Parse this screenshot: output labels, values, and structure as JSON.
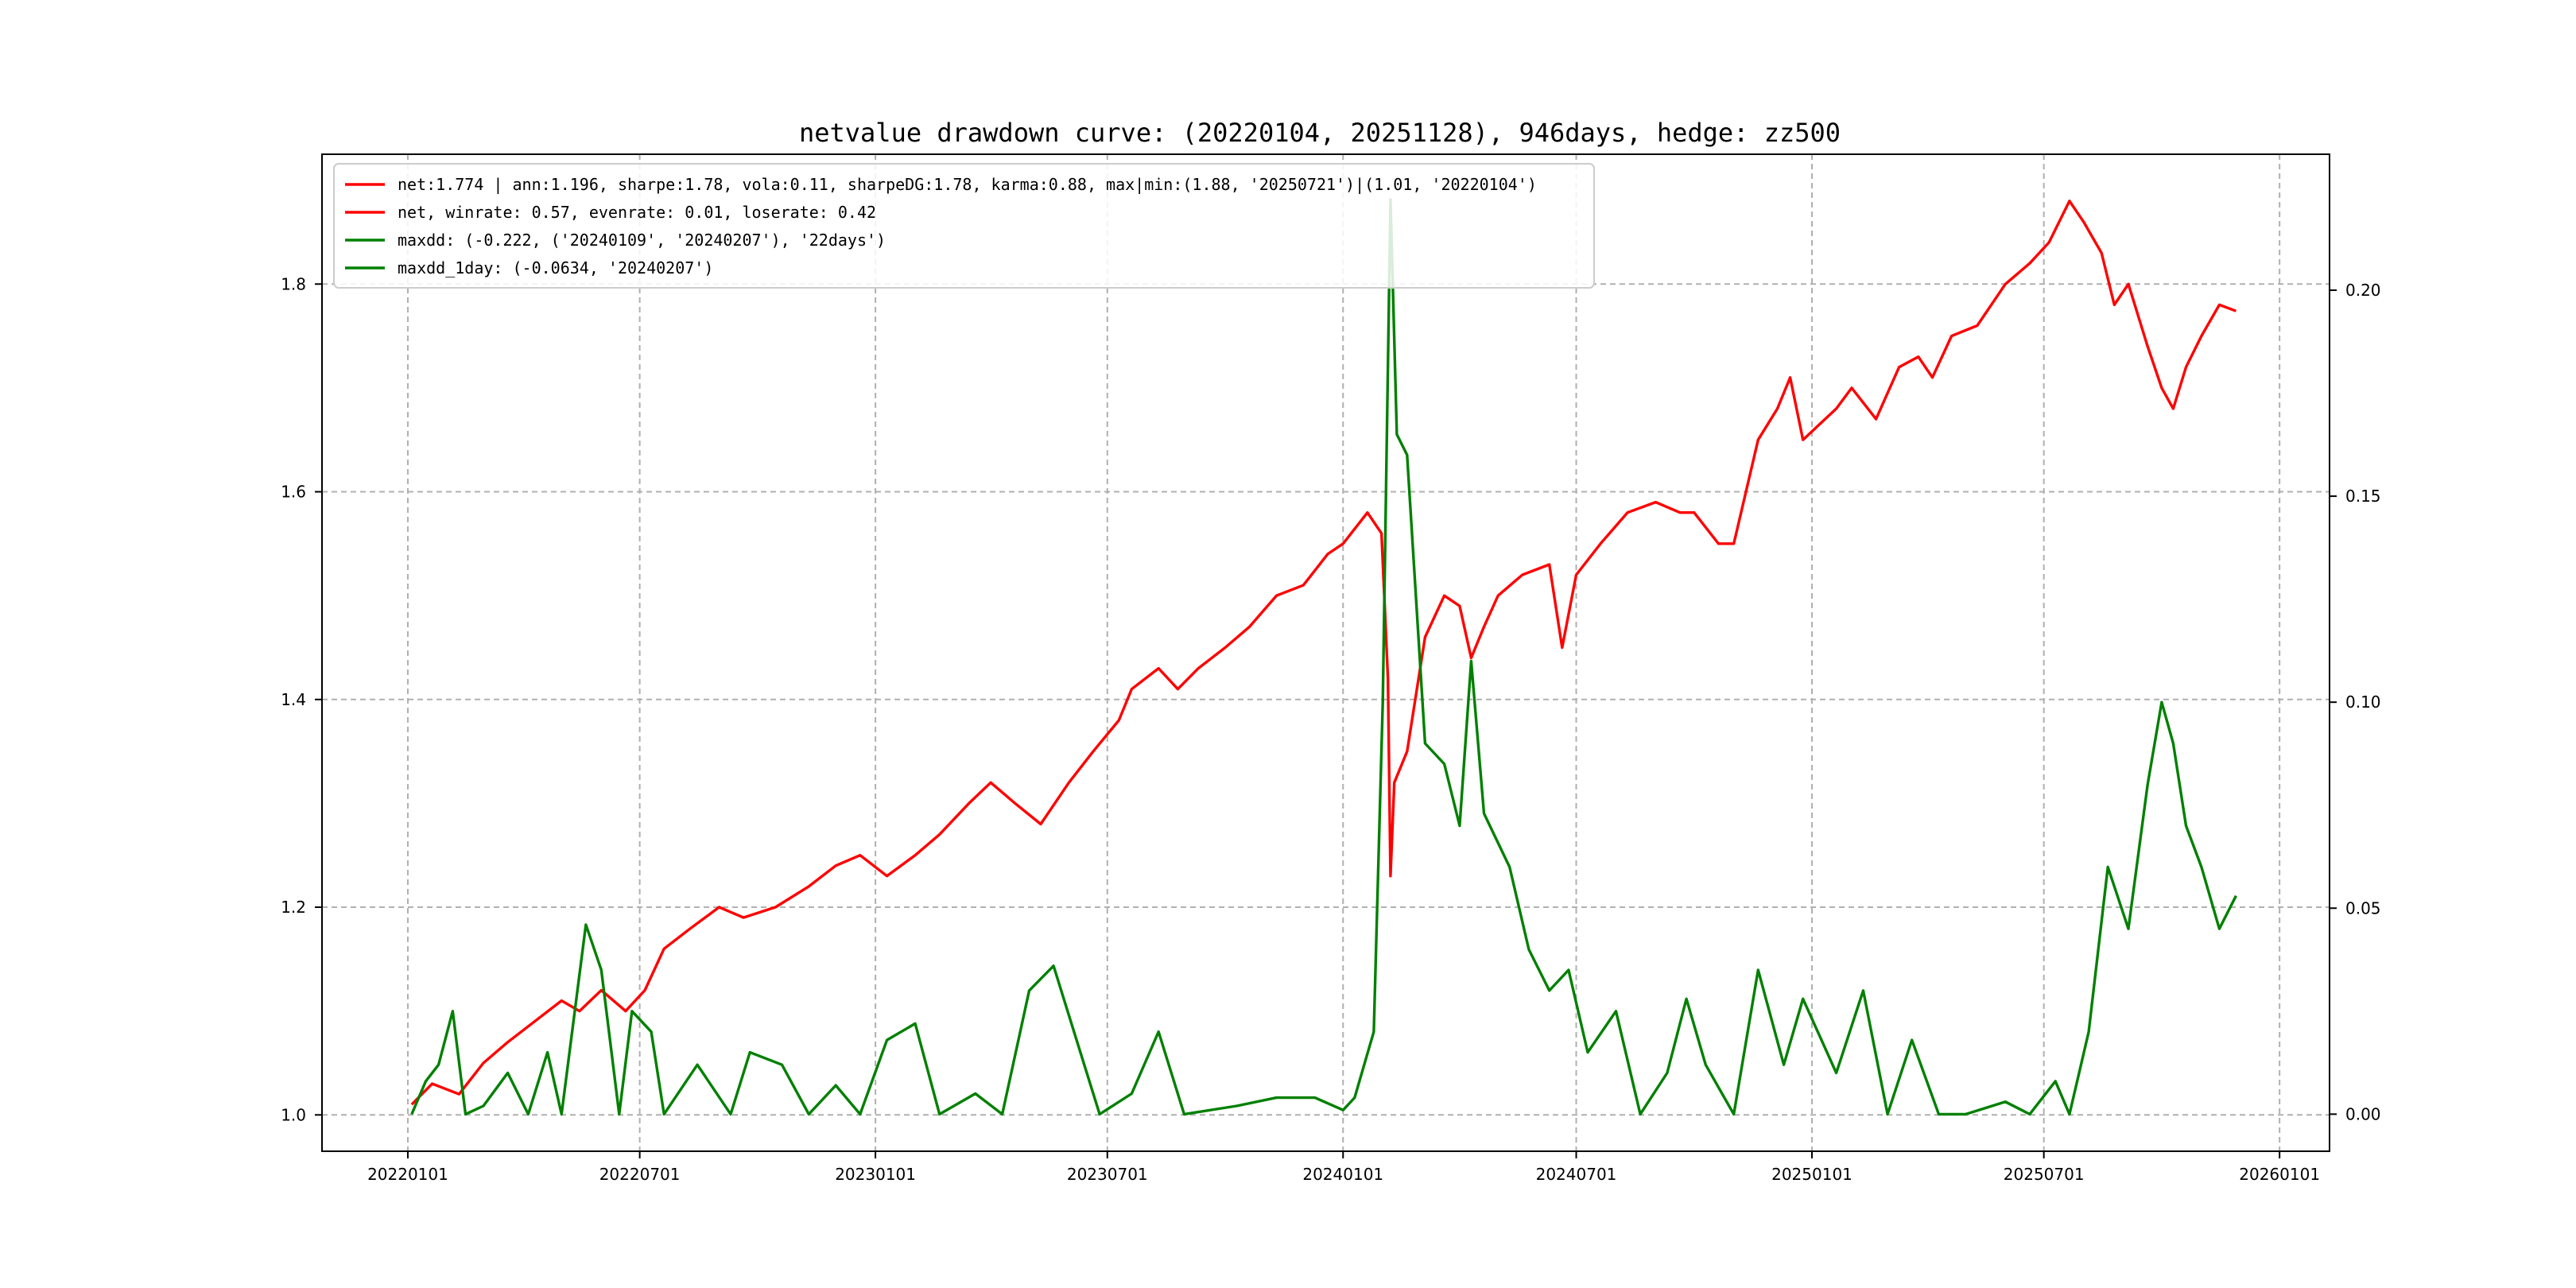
{
  "chart_data": {
    "type": "line",
    "title": "netvalue drawdown curve: (20220104, 20251128), 946days, hedge: zz500",
    "x_ticks": [
      "20220101",
      "20220701",
      "20230101",
      "20230701",
      "20240101",
      "20240701",
      "20250101",
      "20250701",
      "20260101"
    ],
    "x_range": [
      "2021-10-26",
      "2026-02-09"
    ],
    "y_left": {
      "ticks": [
        "1.0",
        "1.2",
        "1.4",
        "1.6",
        "1.8"
      ],
      "range": [
        0.965,
        1.925
      ]
    },
    "y_right": {
      "ticks": [
        "0.00",
        "0.05",
        "0.10",
        "0.15",
        "0.20"
      ],
      "range": [
        -0.009,
        0.233
      ]
    },
    "grid": true,
    "legend_position": "top-left",
    "legend": [
      {
        "label": "net:1.774 | ann:1.196, sharpe:1.78, vola:0.11, sharpeDG:1.78, karma:0.88, max|min:(1.88, '20250721')|(1.01, '20220104')",
        "color": "#ff0000"
      },
      {
        "label": "net, winrate: 0.57, evenrate: 0.01, loserate: 0.42",
        "color": "#ff0000"
      },
      {
        "label": "maxdd: (-0.222, ('20240109', '20240207'), '22days')",
        "color": "#008000"
      },
      {
        "label": "maxdd_1day: (-0.0634, '20240207')",
        "color": "#008000"
      }
    ],
    "series": [
      {
        "axis": "left",
        "color": "#ff0000",
        "points": [
          [
            "2022-01-04",
            1.01
          ],
          [
            "2022-01-20",
            1.03
          ],
          [
            "2022-02-10",
            1.02
          ],
          [
            "2022-03-01",
            1.05
          ],
          [
            "2022-03-20",
            1.07
          ],
          [
            "2022-04-10",
            1.09
          ],
          [
            "2022-05-01",
            1.11
          ],
          [
            "2022-05-15",
            1.1
          ],
          [
            "2022-06-01",
            1.12
          ],
          [
            "2022-06-20",
            1.1
          ],
          [
            "2022-07-05",
            1.12
          ],
          [
            "2022-07-20",
            1.16
          ],
          [
            "2022-08-10",
            1.18
          ],
          [
            "2022-09-01",
            1.2
          ],
          [
            "2022-09-20",
            1.19
          ],
          [
            "2022-10-15",
            1.2
          ],
          [
            "2022-11-10",
            1.22
          ],
          [
            "2022-12-01",
            1.24
          ],
          [
            "2022-12-20",
            1.25
          ],
          [
            "2023-01-10",
            1.23
          ],
          [
            "2023-02-01",
            1.25
          ],
          [
            "2023-02-20",
            1.27
          ],
          [
            "2023-03-15",
            1.3
          ],
          [
            "2023-04-01",
            1.32
          ],
          [
            "2023-04-20",
            1.3
          ],
          [
            "2023-05-10",
            1.28
          ],
          [
            "2023-06-01",
            1.32
          ],
          [
            "2023-06-20",
            1.35
          ],
          [
            "2023-07-10",
            1.38
          ],
          [
            "2023-07-20",
            1.41
          ],
          [
            "2023-08-10",
            1.43
          ],
          [
            "2023-08-25",
            1.41
          ],
          [
            "2023-09-10",
            1.43
          ],
          [
            "2023-10-01",
            1.45
          ],
          [
            "2023-10-20",
            1.47
          ],
          [
            "2023-11-10",
            1.5
          ],
          [
            "2023-12-01",
            1.51
          ],
          [
            "2023-12-20",
            1.54
          ],
          [
            "2024-01-01",
            1.55
          ],
          [
            "2024-01-20",
            1.58
          ],
          [
            "2024-01-31",
            1.56
          ],
          [
            "2024-02-05",
            1.42
          ],
          [
            "2024-02-07",
            1.23
          ],
          [
            "2024-02-10",
            1.32
          ],
          [
            "2024-02-20",
            1.35
          ],
          [
            "2024-03-05",
            1.46
          ],
          [
            "2024-03-20",
            1.5
          ],
          [
            "2024-04-01",
            1.49
          ],
          [
            "2024-04-10",
            1.44
          ],
          [
            "2024-04-20",
            1.47
          ],
          [
            "2024-05-01",
            1.5
          ],
          [
            "2024-05-20",
            1.52
          ],
          [
            "2024-06-10",
            1.53
          ],
          [
            "2024-06-20",
            1.45
          ],
          [
            "2024-07-01",
            1.52
          ],
          [
            "2024-07-20",
            1.55
          ],
          [
            "2024-08-10",
            1.58
          ],
          [
            "2024-09-01",
            1.59
          ],
          [
            "2024-09-20",
            1.58
          ],
          [
            "2024-10-01",
            1.58
          ],
          [
            "2024-10-20",
            1.55
          ],
          [
            "2024-11-01",
            1.55
          ],
          [
            "2024-11-20",
            1.65
          ],
          [
            "2024-12-05",
            1.68
          ],
          [
            "2024-12-15",
            1.71
          ],
          [
            "2024-12-25",
            1.65
          ],
          [
            "2025-01-20",
            1.68
          ],
          [
            "2025-02-01",
            1.7
          ],
          [
            "2025-02-20",
            1.67
          ],
          [
            "2025-03-10",
            1.72
          ],
          [
            "2025-03-25",
            1.73
          ],
          [
            "2025-04-05",
            1.71
          ],
          [
            "2025-04-20",
            1.75
          ],
          [
            "2025-05-10",
            1.76
          ],
          [
            "2025-06-01",
            1.8
          ],
          [
            "2025-06-20",
            1.82
          ],
          [
            "2025-07-05",
            1.84
          ],
          [
            "2025-07-21",
            1.88
          ],
          [
            "2025-08-01",
            1.86
          ],
          [
            "2025-08-15",
            1.83
          ],
          [
            "2025-08-25",
            1.78
          ],
          [
            "2025-09-05",
            1.8
          ],
          [
            "2025-09-20",
            1.74
          ],
          [
            "2025-10-01",
            1.7
          ],
          [
            "2025-10-10",
            1.68
          ],
          [
            "2025-10-20",
            1.72
          ],
          [
            "2025-11-01",
            1.75
          ],
          [
            "2025-11-15",
            1.78
          ],
          [
            "2025-11-28",
            1.774
          ]
        ]
      },
      {
        "axis": "right",
        "color": "#008000",
        "points": [
          [
            "2022-01-04",
            0.0
          ],
          [
            "2022-01-15",
            0.008
          ],
          [
            "2022-01-25",
            0.012
          ],
          [
            "2022-02-05",
            0.025
          ],
          [
            "2022-02-15",
            0.0
          ],
          [
            "2022-03-01",
            0.002
          ],
          [
            "2022-03-20",
            0.01
          ],
          [
            "2022-04-05",
            0.0
          ],
          [
            "2022-04-20",
            0.015
          ],
          [
            "2022-05-01",
            0.0
          ],
          [
            "2022-05-20",
            0.046
          ],
          [
            "2022-06-01",
            0.035
          ],
          [
            "2022-06-15",
            0.0
          ],
          [
            "2022-06-25",
            0.025
          ],
          [
            "2022-07-10",
            0.02
          ],
          [
            "2022-07-20",
            0.0
          ],
          [
            "2022-08-15",
            0.012
          ],
          [
            "2022-09-10",
            0.0
          ],
          [
            "2022-09-25",
            0.015
          ],
          [
            "2022-10-20",
            0.012
          ],
          [
            "2022-11-10",
            0.0
          ],
          [
            "2022-12-01",
            0.007
          ],
          [
            "2022-12-20",
            0.0
          ],
          [
            "2023-01-10",
            0.018
          ],
          [
            "2023-02-01",
            0.022
          ],
          [
            "2023-02-20",
            0.0
          ],
          [
            "2023-03-20",
            0.005
          ],
          [
            "2023-04-10",
            0.0
          ],
          [
            "2023-05-01",
            0.03
          ],
          [
            "2023-05-20",
            0.036
          ],
          [
            "2023-06-10",
            0.015
          ],
          [
            "2023-06-25",
            0.0
          ],
          [
            "2023-07-20",
            0.005
          ],
          [
            "2023-08-10",
            0.02
          ],
          [
            "2023-08-30",
            0.0
          ],
          [
            "2023-10-10",
            0.002
          ],
          [
            "2023-11-10",
            0.004
          ],
          [
            "2023-12-10",
            0.004
          ],
          [
            "2024-01-01",
            0.001
          ],
          [
            "2024-01-10",
            0.004
          ],
          [
            "2024-01-25",
            0.02
          ],
          [
            "2024-02-01",
            0.1
          ],
          [
            "2024-02-07",
            0.222
          ],
          [
            "2024-02-12",
            0.165
          ],
          [
            "2024-02-20",
            0.16
          ],
          [
            "2024-03-05",
            0.09
          ],
          [
            "2024-03-20",
            0.085
          ],
          [
            "2024-04-01",
            0.07
          ],
          [
            "2024-04-10",
            0.11
          ],
          [
            "2024-04-20",
            0.073
          ],
          [
            "2024-05-10",
            0.06
          ],
          [
            "2024-05-25",
            0.04
          ],
          [
            "2024-06-10",
            0.03
          ],
          [
            "2024-06-25",
            0.035
          ],
          [
            "2024-07-10",
            0.015
          ],
          [
            "2024-08-01",
            0.025
          ],
          [
            "2024-08-20",
            0.0
          ],
          [
            "2024-09-10",
            0.01
          ],
          [
            "2024-09-25",
            0.028
          ],
          [
            "2024-10-10",
            0.012
          ],
          [
            "2024-11-01",
            0.0
          ],
          [
            "2024-11-20",
            0.035
          ],
          [
            "2024-12-10",
            0.012
          ],
          [
            "2024-12-25",
            0.028
          ],
          [
            "2025-01-20",
            0.01
          ],
          [
            "2025-02-10",
            0.03
          ],
          [
            "2025-03-01",
            0.0
          ],
          [
            "2025-03-20",
            0.018
          ],
          [
            "2025-04-10",
            0.0
          ],
          [
            "2025-05-01",
            0.0
          ],
          [
            "2025-06-01",
            0.003
          ],
          [
            "2025-06-20",
            0.0
          ],
          [
            "2025-07-10",
            0.008
          ],
          [
            "2025-07-21",
            0.0
          ],
          [
            "2025-08-05",
            0.02
          ],
          [
            "2025-08-20",
            0.06
          ],
          [
            "2025-09-05",
            0.045
          ],
          [
            "2025-09-20",
            0.08
          ],
          [
            "2025-10-01",
            0.1
          ],
          [
            "2025-10-10",
            0.09
          ],
          [
            "2025-10-20",
            0.07
          ],
          [
            "2025-11-01",
            0.06
          ],
          [
            "2025-11-15",
            0.045
          ],
          [
            "2025-11-28",
            0.053
          ]
        ]
      }
    ]
  }
}
